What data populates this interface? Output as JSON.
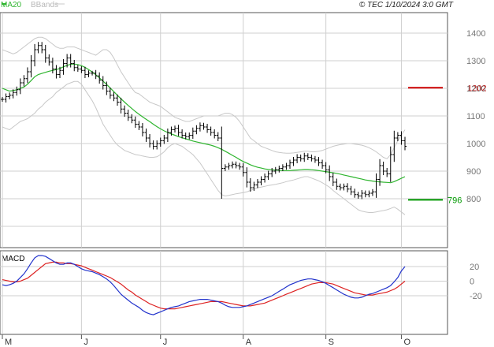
{
  "header": {
    "legend_ma": "MA20",
    "legend_bbands": "BBands",
    "copyright": "© TEC 1/10/2024 3:0 GMT"
  },
  "colors": {
    "price": "#000000",
    "ma": "#2fb52f",
    "bbands": "#c8c8c8",
    "resistance": "#cc0000",
    "support": "#009900",
    "macd": "#2233cc",
    "signal": "#dd2222"
  },
  "chart_data": [
    {
      "type": "ohlc",
      "title": "",
      "grid": true,
      "y_axis_side": "right",
      "y_ticks": [
        1400,
        1300,
        1200,
        1100,
        1000,
        900,
        800
      ],
      "ylim": [
        660,
        1450
      ],
      "x_month_labels": [
        {
          "label": "M",
          "index": 0
        },
        {
          "label": "J",
          "index": 22
        },
        {
          "label": "J",
          "index": 44
        },
        {
          "label": "A",
          "index": 67
        },
        {
          "label": "S",
          "index": 90
        },
        {
          "label": "O",
          "index": 111
        }
      ],
      "x_count": 113,
      "close": [
        1160,
        1170,
        1175,
        1185,
        1195,
        1220,
        1235,
        1260,
        1300,
        1340,
        1355,
        1340,
        1310,
        1295,
        1270,
        1250,
        1265,
        1290,
        1310,
        1290,
        1275,
        1270,
        1265,
        1250,
        1255,
        1255,
        1245,
        1230,
        1210,
        1190,
        1175,
        1165,
        1150,
        1125,
        1110,
        1095,
        1085,
        1070,
        1060,
        1040,
        1020,
        1000,
        990,
        1000,
        1010,
        1020,
        1040,
        1050,
        1055,
        1040,
        1030,
        1025,
        1030,
        1045,
        1055,
        1065,
        1060,
        1050,
        1040,
        1030,
        1020,
        910,
        915,
        920,
        925,
        920,
        915,
        895,
        860,
        840,
        850,
        860,
        870,
        880,
        890,
        900,
        905,
        910,
        915,
        920,
        930,
        940,
        950,
        945,
        955,
        950,
        945,
        940,
        930,
        920,
        905,
        880,
        860,
        845,
        840,
        845,
        835,
        825,
        815,
        810,
        820,
        815,
        820,
        825,
        870,
        920,
        900,
        890,
        960,
        1020,
        1030,
        1010,
        990
      ],
      "ma20": [
        1200,
        1195,
        1190,
        1192,
        1195,
        1200,
        1205,
        1215,
        1228,
        1242,
        1250,
        1254,
        1258,
        1262,
        1265,
        1268,
        1272,
        1278,
        1283,
        1287,
        1288,
        1286,
        1282,
        1276,
        1268,
        1259,
        1249,
        1238,
        1226,
        1214,
        1201,
        1188,
        1175,
        1162,
        1150,
        1138,
        1127,
        1116,
        1106,
        1097,
        1088,
        1079,
        1070,
        1061,
        1053,
        1046,
        1040,
        1035,
        1030,
        1025,
        1021,
        1017,
        1013,
        1009,
        1006,
        1003,
        1000,
        997,
        994,
        990,
        985,
        979,
        972,
        965,
        957,
        950,
        942,
        935,
        929,
        923,
        918,
        914,
        911,
        908,
        906,
        905,
        904,
        903,
        902,
        902,
        902,
        903,
        904,
        905,
        906,
        906,
        905,
        904,
        902,
        900,
        898,
        896,
        894,
        892,
        889,
        886,
        883,
        880,
        877,
        874,
        871,
        868,
        866,
        864,
        862,
        861,
        860,
        859,
        858,
        862,
        868,
        874,
        880
      ],
      "bb_upper": [
        1340,
        1335,
        1330,
        1325,
        1330,
        1340,
        1350,
        1360,
        1370,
        1380,
        1385,
        1385,
        1380,
        1370,
        1360,
        1350,
        1345,
        1345,
        1350,
        1350,
        1350,
        1345,
        1340,
        1335,
        1330,
        1325,
        1320,
        1330,
        1340,
        1340,
        1330,
        1310,
        1285,
        1260,
        1240,
        1220,
        1200,
        1185,
        1180,
        1170,
        1160,
        1150,
        1145,
        1140,
        1135,
        1125,
        1115,
        1105,
        1095,
        1090,
        1085,
        1080,
        1080,
        1085,
        1090,
        1095,
        1100,
        1100,
        1100,
        1100,
        1100,
        1105,
        1110,
        1110,
        1105,
        1095,
        1080,
        1060,
        1040,
        1020,
        1010,
        1000,
        990,
        985,
        980,
        975,
        970,
        968,
        966,
        965,
        965,
        966,
        968,
        970,
        972,
        972,
        970,
        970,
        972,
        975,
        980,
        985,
        990,
        993,
        996,
        998,
        1000,
        1000,
        998,
        996,
        994,
        990,
        985,
        978,
        970,
        960,
        950,
        945,
        960,
        985,
        1010,
        1030,
        1050
      ],
      "bb_lower": [
        1060,
        1055,
        1050,
        1060,
        1070,
        1080,
        1085,
        1090,
        1100,
        1110,
        1125,
        1135,
        1150,
        1160,
        1170,
        1185,
        1195,
        1205,
        1215,
        1220,
        1225,
        1225,
        1215,
        1195,
        1175,
        1155,
        1130,
        1100,
        1070,
        1050,
        1030,
        1010,
        995,
        985,
        975,
        970,
        965,
        960,
        958,
        955,
        952,
        950,
        950,
        952,
        960,
        970,
        985,
        995,
        1000,
        995,
        990,
        980,
        970,
        960,
        945,
        930,
        910,
        890,
        870,
        850,
        830,
        815,
        810,
        812,
        815,
        818,
        820,
        822,
        825,
        830,
        835,
        840,
        842,
        845,
        848,
        850,
        852,
        855,
        858,
        862,
        865,
        868,
        872,
        876,
        880,
        880,
        875,
        870,
        865,
        858,
        850,
        842,
        830,
        820,
        810,
        800,
        790,
        780,
        770,
        760,
        755,
        752,
        750,
        750,
        752,
        755,
        757,
        760,
        765,
        770,
        762,
        752,
        742
      ],
      "resistance": {
        "value": 1202,
        "label": "1202"
      },
      "support": {
        "value": 796,
        "label": "796"
      }
    },
    {
      "type": "line",
      "title": "MACD",
      "y_ticks": [
        20,
        0,
        -20
      ],
      "y_tick_labels": [
        "20",
        "0",
        "-20"
      ],
      "ylim": [
        -45,
        45
      ],
      "series": [
        {
          "name": "MACD",
          "values": [
            -5,
            -6,
            -5,
            -3,
            0,
            5,
            10,
            17,
            25,
            32,
            35,
            35,
            34,
            31,
            28,
            25,
            23,
            23,
            25,
            25,
            23,
            20,
            17,
            15,
            14,
            13,
            11,
            9,
            6,
            3,
            -1,
            -6,
            -12,
            -18,
            -22,
            -26,
            -30,
            -33,
            -36,
            -40,
            -43,
            -45,
            -46,
            -44,
            -42,
            -40,
            -38,
            -36,
            -35,
            -34,
            -32,
            -30,
            -28,
            -27,
            -26,
            -25,
            -25,
            -25,
            -26,
            -27,
            -28,
            -30,
            -33,
            -35,
            -36,
            -36,
            -36,
            -35,
            -34,
            -32,
            -30,
            -28,
            -26,
            -24,
            -22,
            -20,
            -17,
            -14,
            -11,
            -8,
            -5,
            -3,
            -1,
            1,
            2,
            3,
            3,
            2,
            1,
            -1,
            -3,
            -6,
            -9,
            -12,
            -15,
            -18,
            -20,
            -22,
            -23,
            -23,
            -22,
            -20,
            -18,
            -17,
            -15,
            -13,
            -11,
            -9,
            -6,
            -1,
            5,
            14,
            20
          ]
        },
        {
          "name": "Signal",
          "values": [
            2,
            1,
            0,
            -1,
            -1,
            0,
            2,
            4,
            8,
            12,
            16,
            20,
            24,
            25,
            26,
            26,
            25,
            25,
            24,
            24,
            23,
            22,
            21,
            19,
            17,
            15,
            13,
            11,
            9,
            7,
            5,
            2,
            -1,
            -4,
            -8,
            -12,
            -15,
            -19,
            -22,
            -25,
            -28,
            -31,
            -33,
            -35,
            -37,
            -38,
            -38,
            -38,
            -38,
            -37,
            -36,
            -35,
            -34,
            -33,
            -32,
            -31,
            -30,
            -29,
            -28,
            -28,
            -28,
            -28,
            -29,
            -30,
            -31,
            -32,
            -33,
            -34,
            -34,
            -34,
            -33,
            -32,
            -31,
            -30,
            -28,
            -26,
            -24,
            -22,
            -20,
            -18,
            -16,
            -14,
            -12,
            -10,
            -8,
            -6,
            -4,
            -3,
            -2,
            -2,
            -2,
            -3,
            -4,
            -6,
            -8,
            -10,
            -12,
            -14,
            -16,
            -17,
            -18,
            -19,
            -19,
            -19,
            -18,
            -17,
            -16,
            -15,
            -13,
            -11,
            -8,
            -4,
            0
          ]
        }
      ]
    }
  ]
}
